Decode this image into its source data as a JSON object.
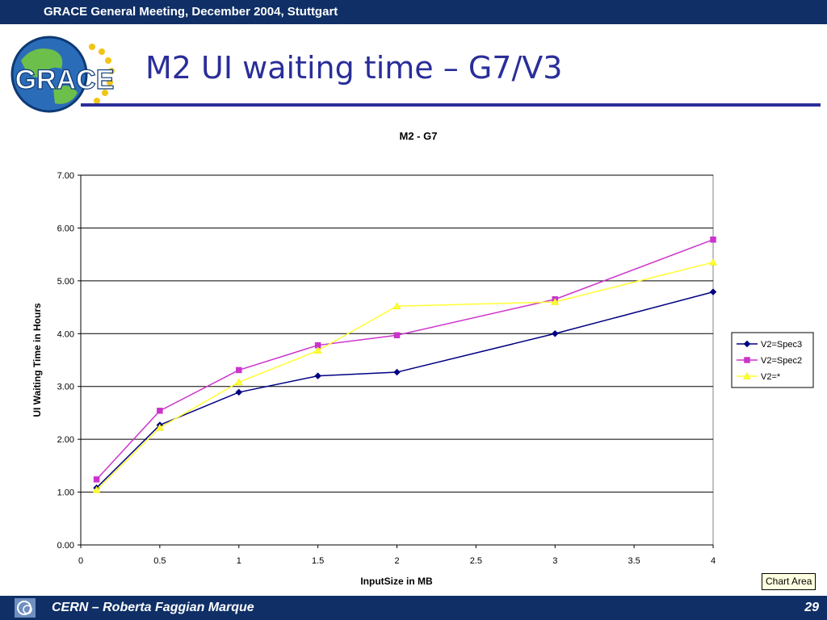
{
  "header": {
    "meeting": "GRACE General Meeting, December 2004, Stuttgart"
  },
  "logo": {
    "text": "GRACE",
    "icon": "grace-globe-logo-icon"
  },
  "slide": {
    "title": "M2 UI waiting time – G7/V3"
  },
  "chart_data": {
    "type": "line",
    "title": "M2 - G7",
    "xlabel": "InputSize in MB",
    "ylabel": "UI Waiting Time in Hours",
    "x": [
      0.1,
      0.5,
      1,
      1.5,
      2,
      3,
      4
    ],
    "xlim": [
      0,
      4
    ],
    "ylim": [
      0,
      7
    ],
    "xticks": [
      0,
      0.5,
      1,
      1.5,
      2,
      2.5,
      3,
      3.5,
      4
    ],
    "xtick_labels": [
      "0",
      "0.5",
      "1",
      "1.5",
      "2",
      "2.5",
      "3",
      "3.5",
      "4"
    ],
    "yticks": [
      0,
      1,
      2,
      3,
      4,
      5,
      6,
      7
    ],
    "ytick_labels": [
      "0.00",
      "1.00",
      "2.00",
      "3.00",
      "4.00",
      "5.00",
      "6.00",
      "7.00"
    ],
    "grid": "horizontal",
    "legend_position": "right",
    "series": [
      {
        "name": "V2=Spec3",
        "color": "#000080",
        "marker": "diamond",
        "values": [
          1.08,
          2.27,
          2.89,
          3.2,
          3.27,
          4.0,
          4.79
        ]
      },
      {
        "name": "V2=Spec2",
        "color": "#cc33cc",
        "marker": "square",
        "values": [
          1.24,
          2.54,
          3.31,
          3.78,
          3.97,
          4.65,
          5.78
        ]
      },
      {
        "name": "V2=*",
        "color": "#ffff33",
        "marker": "triangle",
        "values": [
          1.04,
          2.22,
          3.08,
          3.68,
          4.52,
          4.6,
          5.35
        ]
      }
    ]
  },
  "chart_tooltip": {
    "label": "Chart Area"
  },
  "footer": {
    "text": "CERN – Roberta Faggian Marque",
    "page": "29",
    "icon": "cern-logo-icon"
  }
}
